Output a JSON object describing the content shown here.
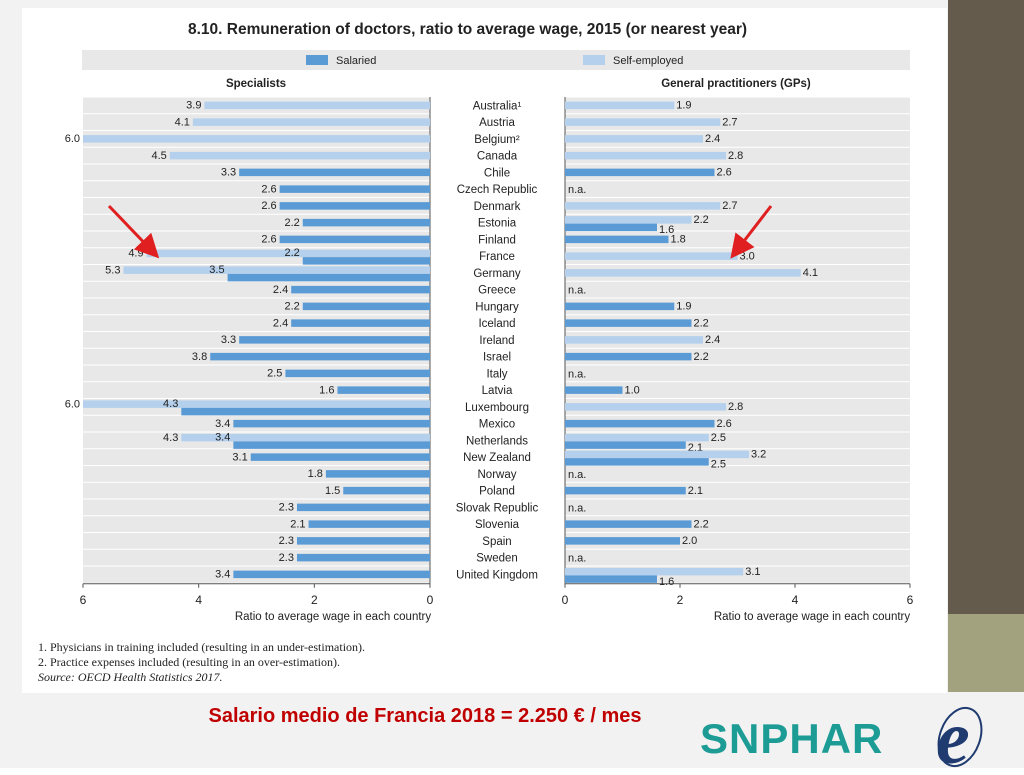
{
  "title": "8.10. Remuneration of doctors, ratio to average wage, 2015 (or nearest year)",
  "legend": {
    "salaried": "Salaried",
    "self_employed": "Self-employed"
  },
  "colors": {
    "salaried": "#5b9bd5",
    "self_employed": "#b4d0ec",
    "panel_bg": "#e8e8e8",
    "caption": "#c00000",
    "logo": "#1c9c95",
    "arrow": "#e02020"
  },
  "footnotes": [
    "1. Physicians in training included (resulting in an under-estimation).",
    "2. Practice expenses included (resulting in an over-estimation)."
  ],
  "source": "Source: OECD Health Statistics 2017.",
  "caption": "Salario medio de Francia 2018 = 2.250 € / mes",
  "logo": {
    "text": "SNPHAR",
    "mark": "e"
  },
  "chart_data": {
    "type": "bar",
    "categories": [
      "Australia¹",
      "Austria",
      "Belgium²",
      "Canada",
      "Chile",
      "Czech Republic",
      "Denmark",
      "Estonia",
      "Finland",
      "France",
      "Germany",
      "Greece",
      "Hungary",
      "Iceland",
      "Ireland",
      "Israel",
      "Italy",
      "Latvia",
      "Luxembourg",
      "Mexico",
      "Netherlands",
      "New Zealand",
      "Norway",
      "Poland",
      "Slovak Republic",
      "Slovenia",
      "Spain",
      "Sweden",
      "United Kingdom"
    ],
    "panels": [
      {
        "title": "Specialists",
        "xlabel": "Ratio to average wage in each country",
        "xlim": [
          0,
          6
        ],
        "reversed": true,
        "ticks": [
          6,
          4,
          2,
          0
        ],
        "series": [
          {
            "name": "Salaried",
            "values": [
              null,
              null,
              null,
              null,
              3.3,
              2.6,
              2.6,
              2.2,
              2.6,
              2.2,
              3.5,
              2.4,
              2.2,
              2.4,
              3.3,
              3.8,
              2.5,
              1.6,
              4.3,
              3.4,
              3.4,
              3.1,
              1.8,
              1.5,
              2.3,
              2.1,
              2.3,
              2.3,
              3.4
            ]
          },
          {
            "name": "Self-employed",
            "values": [
              3.9,
              4.1,
              6.0,
              4.5,
              null,
              null,
              null,
              null,
              null,
              4.9,
              5.3,
              null,
              null,
              null,
              null,
              null,
              null,
              null,
              6.0,
              null,
              4.3,
              null,
              null,
              null,
              null,
              null,
              null,
              null,
              null
            ]
          }
        ]
      },
      {
        "title": "General practitioners (GPs)",
        "xlabel": "Ratio to average wage in each country",
        "xlim": [
          0,
          6
        ],
        "reversed": false,
        "ticks": [
          0,
          2,
          4,
          6
        ],
        "na_label": "n.a.",
        "series": [
          {
            "name": "Salaried",
            "values": [
              null,
              null,
              null,
              null,
              2.6,
              null,
              null,
              1.6,
              1.8,
              null,
              null,
              null,
              1.9,
              2.2,
              null,
              2.2,
              null,
              1.0,
              null,
              2.6,
              2.1,
              2.5,
              null,
              2.1,
              null,
              2.2,
              2.0,
              null,
              1.6
            ]
          },
          {
            "name": "Self-employed",
            "values": [
              1.9,
              2.7,
              2.4,
              2.8,
              null,
              null,
              2.7,
              2.2,
              null,
              3.0,
              4.1,
              null,
              null,
              null,
              2.4,
              null,
              null,
              null,
              2.8,
              null,
              2.5,
              3.2,
              null,
              null,
              null,
              null,
              null,
              null,
              3.1
            ]
          }
        ],
        "na": [
          "Czech Republic",
          "Greece",
          "Italy",
          "Norway",
          "Slovak Republic",
          "Sweden"
        ]
      }
    ]
  }
}
